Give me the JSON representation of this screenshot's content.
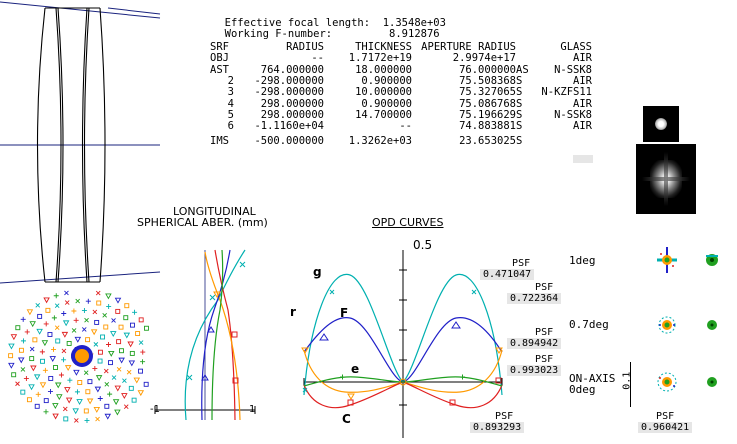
{
  "header": {
    "efl_label": "Effective focal length:",
    "efl_value": "1.3548e+03",
    "fnum_label": "Working F-number:",
    "fnum_value": "8.912876"
  },
  "prescription": {
    "columns": [
      "SRF",
      "RADIUS",
      "THICKNESS",
      "APERTURE RADIUS",
      "GLASS"
    ],
    "rows": [
      {
        "srf": "OBJ",
        "radius": "--",
        "thickness": "1.7172e+19",
        "aperture": "2.9974e+17",
        "flag": "",
        "glass": "AIR"
      },
      {
        "srf": "AST",
        "radius": "764.000000",
        "thickness": "18.000000",
        "aperture": "76.000000",
        "flag": "AS",
        "glass": "N-SSK8"
      },
      {
        "srf": "2",
        "radius": "-298.000000",
        "thickness": "0.900000",
        "aperture": "75.508368",
        "flag": "S",
        "glass": "AIR"
      },
      {
        "srf": "3",
        "radius": "-298.000000",
        "thickness": "10.000000",
        "aperture": "75.327065",
        "flag": "S",
        "glass": "N-KZFS11"
      },
      {
        "srf": "4",
        "radius": "298.000000",
        "thickness": "0.900000",
        "aperture": "75.086768",
        "flag": "S",
        "glass": "AIR"
      },
      {
        "srf": "5",
        "radius": "298.000000",
        "thickness": "14.700000",
        "aperture": "75.196629",
        "flag": "S",
        "glass": "N-SSK8"
      },
      {
        "srf": "6",
        "radius": "-1.1160e+04",
        "thickness": "--",
        "aperture": "74.883881",
        "flag": "S",
        "glass": "AIR"
      },
      {
        "srf": "IMS",
        "radius": "-500.000000",
        "thickness": "1.3262e+03",
        "aperture": "23.653025",
        "flag": "S",
        "glass": ""
      }
    ]
  },
  "longitudinal": {
    "title_line1": "LONGITUDINAL",
    "title_line2": "SPHERICAL ABER. (mm)",
    "axis_min": "-1",
    "axis_max": "1"
  },
  "opd": {
    "title": "OPD CURVES",
    "scale": "0.5",
    "curve_labels": {
      "g": "g",
      "F": "F",
      "r": "r",
      "e": "e",
      "C": "C"
    }
  },
  "psf": {
    "label": "PSF",
    "g": "0.471047",
    "r": "0.722364",
    "F": "0.894942",
    "e": "0.993023",
    "C": "0.893293",
    "onaxis": "0.960421"
  },
  "fields": {
    "f1": "1deg",
    "f2": "0.7deg",
    "f3a": "ON-AXIS",
    "f3b": "0deg",
    "scale": "0.1"
  },
  "colors": {
    "g": "#00b0b0",
    "F": "#2020c8",
    "e": "#20a020",
    "C": "#e02020",
    "r": "#ff9a00",
    "axis": "#1a237e"
  }
}
